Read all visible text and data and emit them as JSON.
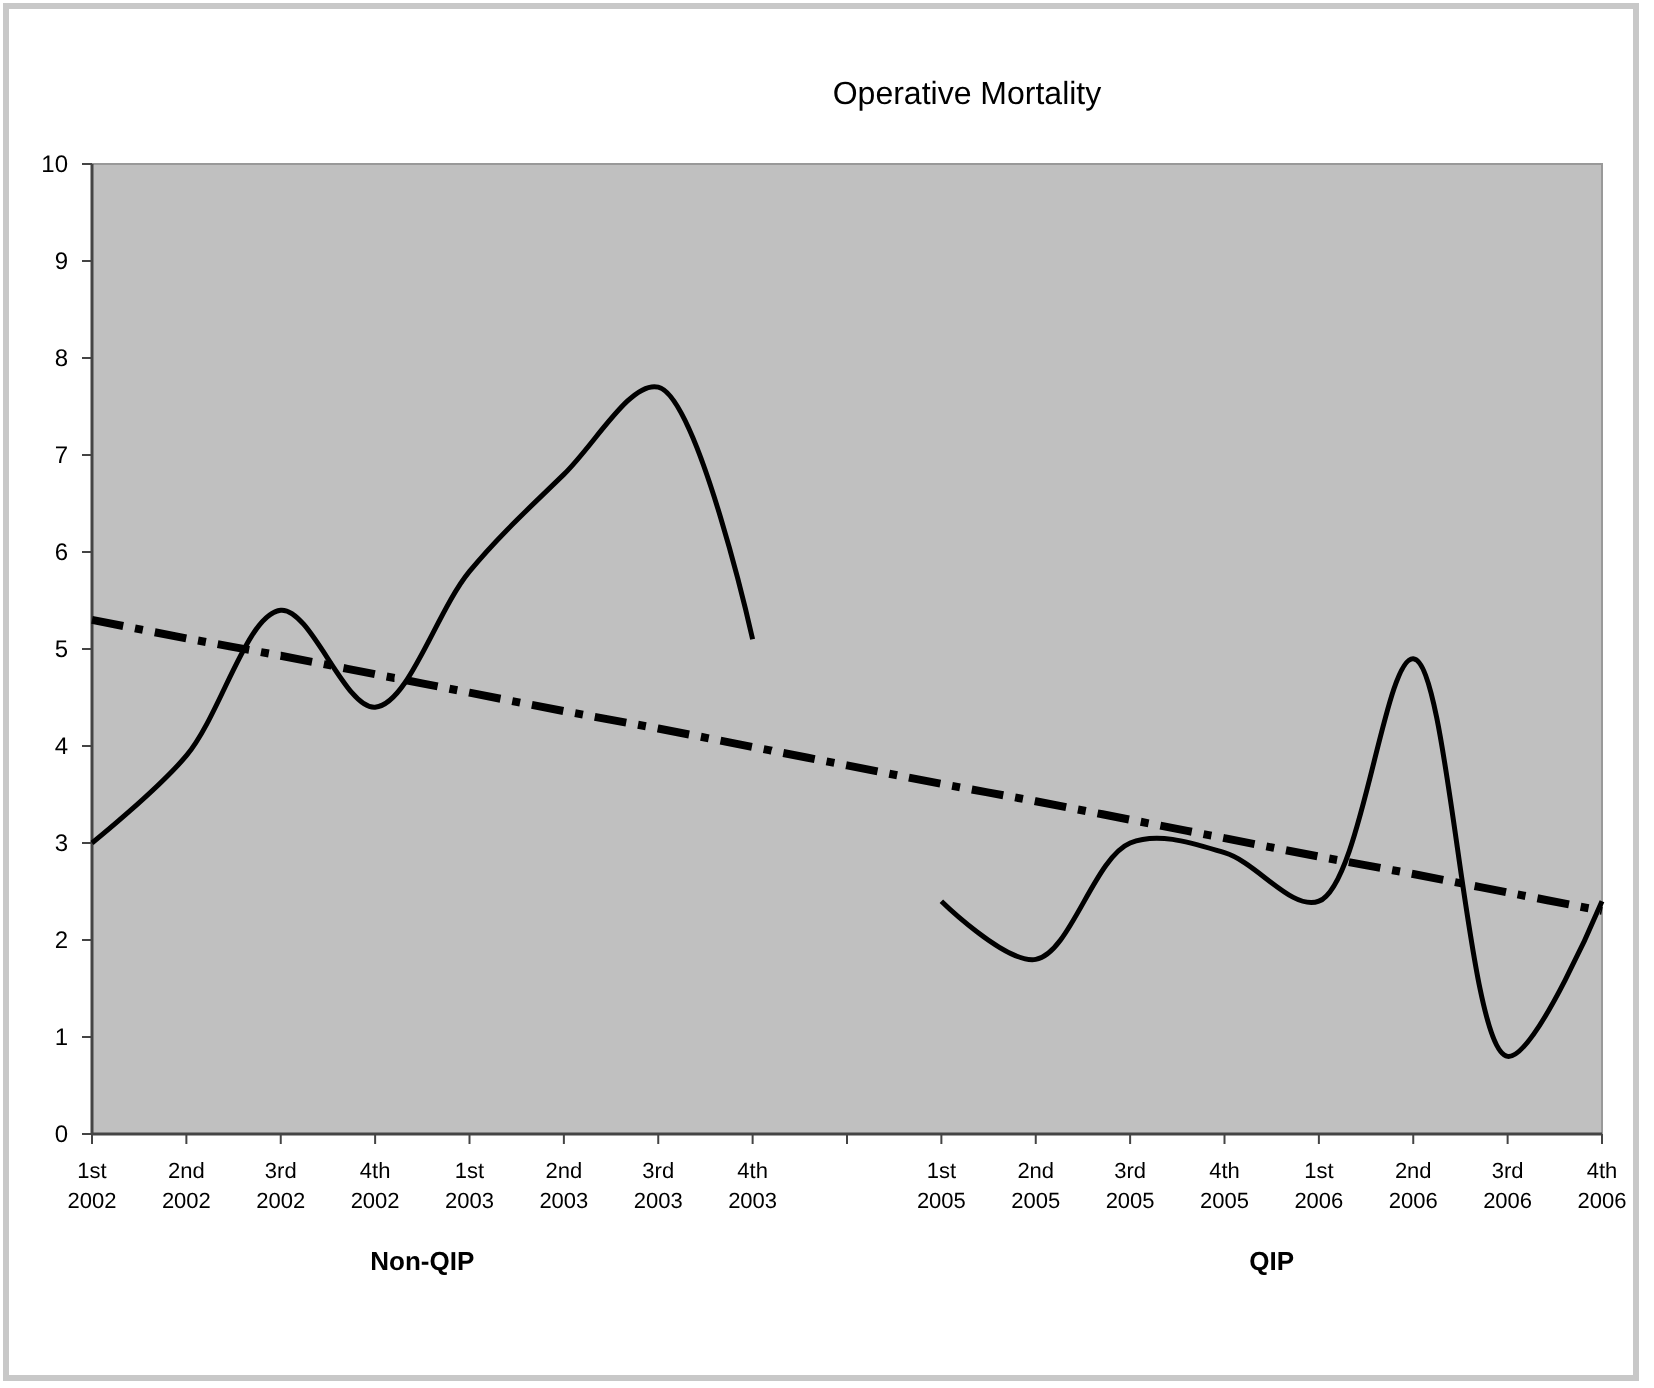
{
  "chart_data": {
    "type": "line",
    "title": "Operative Mortality",
    "categories": [
      "1st\n2002",
      "2nd\n2002",
      "3rd\n2002",
      "4th\n2002",
      "1st\n2003",
      "2nd\n2003",
      "3rd\n2003",
      "4th\n2003",
      null,
      "1st\n2005",
      "2nd\n2005",
      "3rd\n2005",
      "4th\n2005",
      "1st\n2006",
      "2nd\n2006",
      "3rd\n2006",
      "4th\n2006"
    ],
    "series": [
      {
        "color": "#000000",
        "values": [
          3.0,
          3.9,
          5.4,
          4.4,
          5.8,
          6.8,
          7.7,
          5.1,
          null,
          null,
          null,
          null,
          null,
          null,
          null,
          null,
          null
        ]
      },
      {
        "color": "#000000",
        "values": [
          null,
          null,
          null,
          null,
          null,
          null,
          null,
          null,
          null,
          2.4,
          1.8,
          3.0,
          2.9,
          2.4,
          4.9,
          0.8,
          2.4
        ]
      },
      {
        "color": "#000000",
        "line_style": "dashed",
        "values": [
          5.3,
          5.11,
          4.93,
          4.74,
          4.55,
          4.36,
          4.18,
          3.99,
          3.8,
          3.61,
          3.43,
          3.24,
          3.05,
          2.86,
          2.68,
          2.49,
          2.3
        ]
      }
    ],
    "ylim": [
      0,
      10
    ],
    "yticks": [
      0,
      1,
      2,
      3,
      4,
      5,
      6,
      7,
      8,
      9,
      10
    ],
    "marker": "none",
    "grid": false,
    "annotations": [
      "Non-QIP",
      "QIP"
    ]
  }
}
